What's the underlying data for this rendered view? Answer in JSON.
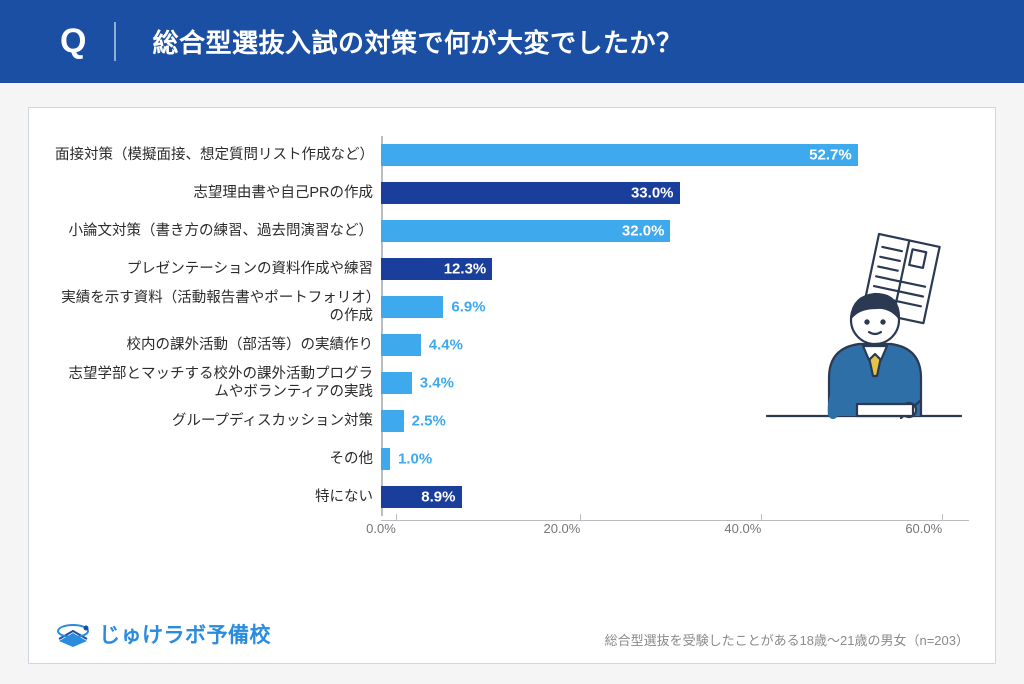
{
  "header": {
    "q": "Q",
    "title": "総合型選抜入試の対策で何が大変でしたか？"
  },
  "chart": {
    "type": "bar-horizontal",
    "xmax": 65,
    "xtick_step": 20,
    "xticks": [
      "0.0%",
      "20.0%",
      "40.0%",
      "60.0%"
    ],
    "axis_color": "#b9bcc1",
    "bar_colors": {
      "light": "#3ea9ed",
      "dark": "#1a3e9b"
    },
    "value_color_inside": "#ffffff",
    "value_color_outside_light": "#3ea9ed",
    "rows": [
      {
        "label": "面接対策（模擬面接、想定質問リスト作成など）",
        "value": 52.7,
        "display": "52.7%",
        "color": "light",
        "val_pos": "inside",
        "val_color": "#ffffff"
      },
      {
        "label": "志望理由書や自己PRの作成",
        "value": 33.0,
        "display": "33.0%",
        "color": "dark",
        "val_pos": "inside",
        "val_color": "#ffffff"
      },
      {
        "label": "小論文対策（書き方の練習、過去問演習など）",
        "value": 32.0,
        "display": "32.0%",
        "color": "light",
        "val_pos": "inside",
        "val_color": "#ffffff"
      },
      {
        "label": "プレゼンテーションの資料作成や練習",
        "value": 12.3,
        "display": "12.3%",
        "color": "dark",
        "val_pos": "inside",
        "val_color": "#ffffff"
      },
      {
        "label": "実績を示す資料（活動報告書やポートフォリオ）の作成",
        "value": 6.9,
        "display": "6.9%",
        "color": "light",
        "val_pos": "outside",
        "val_color": "#3ea9ed"
      },
      {
        "label": "校内の課外活動（部活等）の実績作り",
        "value": 4.4,
        "display": "4.4%",
        "color": "light",
        "val_pos": "outside",
        "val_color": "#3ea9ed"
      },
      {
        "label": "志望学部とマッチする校外の課外活動プログラムやボランティアの実践",
        "value": 3.4,
        "display": "3.4%",
        "color": "light",
        "val_pos": "outside",
        "val_color": "#3ea9ed"
      },
      {
        "label": "グループディスカッション対策",
        "value": 2.5,
        "display": "2.5%",
        "color": "light",
        "val_pos": "outside",
        "val_color": "#3ea9ed"
      },
      {
        "label": "その他",
        "value": 1.0,
        "display": "1.0%",
        "color": "light",
        "val_pos": "outside",
        "val_color": "#3ea9ed"
      },
      {
        "label": "特にない",
        "value": 8.9,
        "display": "8.9%",
        "color": "dark",
        "val_pos": "inside",
        "val_color": "#ffffff"
      }
    ]
  },
  "footer": {
    "logo_text": "じゅけラボ予備校",
    "note": "総合型選抜を受験したことがある18歳〜21歳の男女（n=203）"
  },
  "illus_colors": {
    "line": "#2b3a52",
    "suit": "#2d6fa6",
    "tie": "#e7c24a",
    "paper": "#ffffff",
    "paper_line": "#5a6b82"
  }
}
